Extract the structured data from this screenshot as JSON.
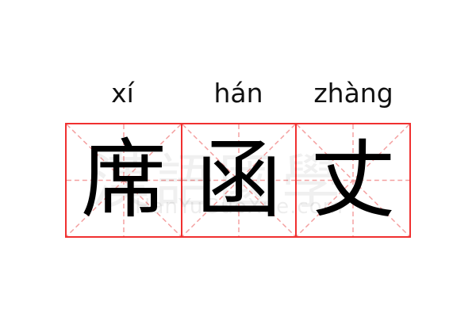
{
  "entries": [
    {
      "pinyin": "xí",
      "character": "席"
    },
    {
      "pinyin": "hán",
      "character": "函"
    },
    {
      "pinyin": "zhàng",
      "character": "丈"
    }
  ],
  "watermark": {
    "chinese": "漢語國學",
    "latin": "HanYuGuoXue.com"
  },
  "colors": {
    "grid_border": "#f03030",
    "guide_lines": "#f4a0a0",
    "text": "#000000"
  }
}
